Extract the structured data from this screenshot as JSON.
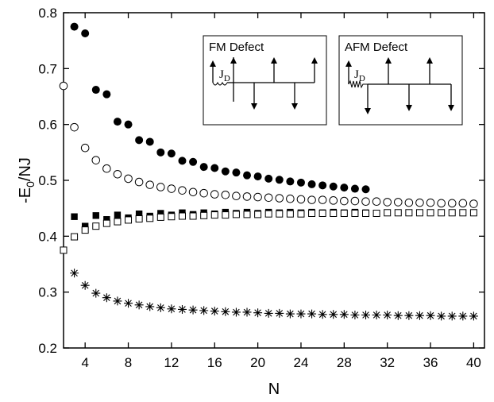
{
  "chart_data": {
    "type": "scatter",
    "xlabel": "N",
    "ylabel": {
      "main": "-E",
      "sub": "0",
      "rest": "/NJ"
    },
    "xlim": [
      2,
      41
    ],
    "ylim": [
      0.2,
      0.8
    ],
    "xticks": [
      4,
      8,
      12,
      16,
      20,
      24,
      28,
      32,
      36,
      40
    ],
    "yticks": [
      0.2,
      0.3,
      0.4,
      0.5,
      0.6,
      0.7,
      0.8
    ],
    "ytick_labels": [
      "0.2",
      "0.3",
      "0.4",
      "0.5",
      "0.6",
      "0.7",
      "0.8"
    ],
    "grid": false,
    "series": [
      {
        "marker": "filled-circle",
        "x": [
          3,
          4,
          5,
          6,
          7,
          8,
          9,
          10,
          11,
          12,
          13,
          14,
          15,
          16,
          17,
          18,
          19,
          20,
          21,
          22,
          23,
          24,
          25,
          26,
          27,
          28,
          29,
          30
        ],
        "y": [
          0.775,
          0.763,
          0.662,
          0.654,
          0.605,
          0.6,
          0.572,
          0.569,
          0.55,
          0.548,
          0.535,
          0.533,
          0.524,
          0.522,
          0.516,
          0.514,
          0.509,
          0.507,
          0.503,
          0.501,
          0.498,
          0.496,
          0.493,
          0.491,
          0.489,
          0.487,
          0.485,
          0.484
        ]
      },
      {
        "marker": "open-circle",
        "x": [
          2,
          3,
          4,
          5,
          6,
          7,
          8,
          9,
          10,
          11,
          12,
          13,
          14,
          15,
          16,
          17,
          18,
          19,
          20,
          21,
          22,
          23,
          24,
          25,
          26,
          27,
          28,
          29,
          30,
          31,
          32,
          33,
          34,
          35,
          36,
          37,
          38,
          39,
          40
        ],
        "y": [
          0.669,
          0.595,
          0.558,
          0.536,
          0.521,
          0.511,
          0.503,
          0.497,
          0.492,
          0.488,
          0.485,
          0.482,
          0.479,
          0.477,
          0.475,
          0.474,
          0.472,
          0.471,
          0.47,
          0.469,
          0.468,
          0.467,
          0.466,
          0.465,
          0.465,
          0.464,
          0.463,
          0.463,
          0.462,
          0.462,
          0.461,
          0.461,
          0.46,
          0.46,
          0.46,
          0.459,
          0.459,
          0.459,
          0.458
        ]
      },
      {
        "marker": "filled-square",
        "x": [
          3,
          4,
          5,
          6,
          7,
          8,
          9,
          10,
          11,
          12,
          13,
          14,
          15,
          16,
          17,
          18,
          19,
          20,
          21,
          22,
          23,
          24,
          25,
          26,
          27,
          28,
          29,
          30
        ],
        "y": [
          0.435,
          0.418,
          0.437,
          0.43,
          0.438,
          0.433,
          0.44,
          0.436,
          0.441,
          0.438,
          0.442,
          0.439,
          0.442,
          0.44,
          0.443,
          0.441,
          0.443,
          0.441,
          0.443,
          0.442,
          0.443,
          0.442,
          0.443,
          0.442,
          0.443,
          0.442,
          0.443,
          0.442
        ]
      },
      {
        "marker": "open-square",
        "x": [
          2,
          3,
          4,
          5,
          6,
          7,
          8,
          9,
          10,
          11,
          12,
          13,
          14,
          15,
          16,
          17,
          18,
          19,
          20,
          21,
          22,
          23,
          24,
          25,
          26,
          27,
          28,
          29,
          30,
          31,
          32,
          33,
          34,
          35,
          36,
          37,
          38,
          39,
          40
        ],
        "y": [
          0.375,
          0.399,
          0.411,
          0.418,
          0.423,
          0.426,
          0.429,
          0.431,
          0.432,
          0.434,
          0.435,
          0.436,
          0.436,
          0.437,
          0.438,
          0.438,
          0.439,
          0.439,
          0.439,
          0.44,
          0.44,
          0.44,
          0.44,
          0.441,
          0.441,
          0.441,
          0.441,
          0.441,
          0.441,
          0.441,
          0.442,
          0.442,
          0.442,
          0.442,
          0.442,
          0.442,
          0.442,
          0.442,
          0.442
        ]
      },
      {
        "marker": "asterisk",
        "x": [
          3,
          4,
          5,
          6,
          7,
          8,
          9,
          10,
          11,
          12,
          13,
          14,
          15,
          16,
          17,
          18,
          19,
          20,
          21,
          22,
          23,
          24,
          25,
          26,
          27,
          28,
          29,
          30,
          31,
          32,
          33,
          34,
          35,
          36,
          37,
          38,
          39,
          40
        ],
        "y": [
          0.334,
          0.312,
          0.298,
          0.29,
          0.284,
          0.28,
          0.277,
          0.274,
          0.272,
          0.27,
          0.269,
          0.268,
          0.267,
          0.266,
          0.265,
          0.264,
          0.264,
          0.263,
          0.262,
          0.262,
          0.261,
          0.261,
          0.261,
          0.26,
          0.26,
          0.26,
          0.259,
          0.259,
          0.259,
          0.259,
          0.258,
          0.258,
          0.258,
          0.258,
          0.257,
          0.257,
          0.257,
          0.257
        ]
      }
    ],
    "insets": [
      {
        "title": "FM Defect",
        "coupling": "J",
        "coupling_sub": "D",
        "bond": "straight"
      },
      {
        "title": "AFM Defect",
        "coupling": "J",
        "coupling_sub": "D",
        "bond": "zigzag"
      }
    ]
  }
}
